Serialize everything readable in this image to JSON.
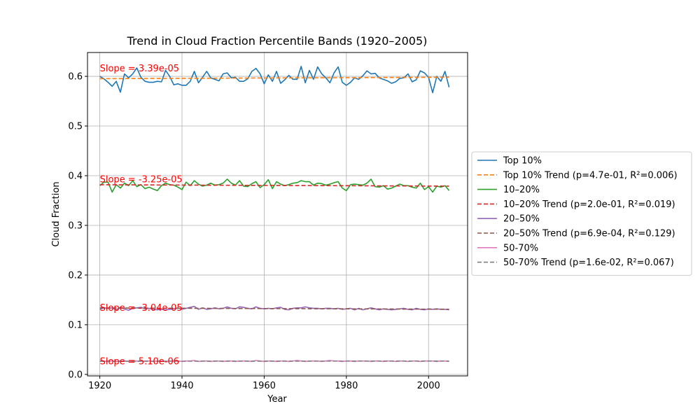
{
  "chart_data": {
    "type": "line",
    "title": "Trend in Cloud Fraction Percentile Bands (1920–2005)",
    "xlabel": "Year",
    "ylabel": "Cloud Fraction",
    "xlim": [
      1917,
      2009.5
    ],
    "ylim": [
      -0.003,
      0.648
    ],
    "x_ticks": [
      1920,
      1940,
      1960,
      1980,
      2000
    ],
    "y_ticks": [
      0.0,
      0.1,
      0.2,
      0.3,
      0.4,
      0.5,
      0.6
    ],
    "y_tick_labels": [
      "0.0",
      "0.1",
      "0.2",
      "0.3",
      "0.4",
      "0.5",
      "0.6"
    ],
    "grid": true,
    "legend_position": "center-right-outside",
    "x_start": 1920,
    "x_end": 2005,
    "series": [
      {
        "name": "Top 10%",
        "color": "#1f77b4",
        "values": [
          0.6,
          0.595,
          0.588,
          0.58,
          0.59,
          0.568,
          0.605,
          0.597,
          0.605,
          0.617,
          0.598,
          0.59,
          0.588,
          0.588,
          0.59,
          0.589,
          0.612,
          0.6,
          0.583,
          0.585,
          0.582,
          0.582,
          0.59,
          0.61,
          0.587,
          0.598,
          0.61,
          0.597,
          0.594,
          0.591,
          0.605,
          0.607,
          0.597,
          0.598,
          0.59,
          0.59,
          0.595,
          0.61,
          0.616,
          0.605,
          0.585,
          0.603,
          0.59,
          0.61,
          0.586,
          0.593,
          0.602,
          0.594,
          0.594,
          0.62,
          0.587,
          0.612,
          0.594,
          0.619,
          0.605,
          0.597,
          0.587,
          0.607,
          0.619,
          0.588,
          0.582,
          0.588,
          0.597,
          0.594,
          0.601,
          0.611,
          0.605,
          0.606,
          0.597,
          0.594,
          0.591,
          0.586,
          0.589,
          0.596,
          0.597,
          0.605,
          0.589,
          0.593,
          0.611,
          0.607,
          0.598,
          0.567,
          0.6,
          0.59,
          0.61,
          0.578
        ]
      },
      {
        "name": "Top 10% Trend (p=4.7e-01, R²=0.006)",
        "color": "#ff7f0e",
        "dashed": true,
        "values": [
          0.5953,
          0.5982
        ]
      },
      {
        "name": "10–20%",
        "color": "#2ca02c",
        "values": [
          0.38,
          0.387,
          0.387,
          0.367,
          0.382,
          0.375,
          0.385,
          0.38,
          0.39,
          0.378,
          0.382,
          0.374,
          0.377,
          0.373,
          0.37,
          0.38,
          0.385,
          0.382,
          0.381,
          0.377,
          0.372,
          0.387,
          0.38,
          0.39,
          0.383,
          0.379,
          0.381,
          0.385,
          0.381,
          0.382,
          0.385,
          0.393,
          0.385,
          0.381,
          0.39,
          0.379,
          0.378,
          0.384,
          0.388,
          0.376,
          0.382,
          0.392,
          0.374,
          0.388,
          0.383,
          0.38,
          0.382,
          0.385,
          0.386,
          0.39,
          0.388,
          0.388,
          0.381,
          0.385,
          0.384,
          0.381,
          0.383,
          0.386,
          0.388,
          0.375,
          0.37,
          0.382,
          0.383,
          0.382,
          0.381,
          0.385,
          0.393,
          0.378,
          0.377,
          0.38,
          0.373,
          0.375,
          0.379,
          0.383,
          0.38,
          0.38,
          0.377,
          0.375,
          0.385,
          0.372,
          0.378,
          0.367,
          0.379,
          0.377,
          0.38,
          0.37
        ]
      },
      {
        "name": "10–20% Trend (p=2.0e-01, R²=0.019)",
        "color": "#d62728",
        "dashed": true,
        "values": [
          0.3818,
          0.379
        ]
      },
      {
        "name": "20–50%",
        "color": "#9467bd",
        "values": [
          0.131,
          0.134,
          0.133,
          0.134,
          0.13,
          0.135,
          0.132,
          0.129,
          0.133,
          0.134,
          0.135,
          0.132,
          0.133,
          0.131,
          0.13,
          0.131,
          0.13,
          0.131,
          0.132,
          0.134,
          0.131,
          0.133,
          0.135,
          0.137,
          0.131,
          0.134,
          0.131,
          0.132,
          0.134,
          0.132,
          0.133,
          0.136,
          0.133,
          0.132,
          0.136,
          0.135,
          0.133,
          0.132,
          0.136,
          0.133,
          0.132,
          0.133,
          0.132,
          0.134,
          0.135,
          0.131,
          0.13,
          0.133,
          0.134,
          0.134,
          0.136,
          0.134,
          0.133,
          0.133,
          0.132,
          0.133,
          0.133,
          0.132,
          0.133,
          0.131,
          0.132,
          0.133,
          0.13,
          0.133,
          0.13,
          0.132,
          0.134,
          0.132,
          0.13,
          0.132,
          0.131,
          0.13,
          0.131,
          0.132,
          0.133,
          0.131,
          0.13,
          0.133,
          0.131,
          0.13,
          0.132,
          0.131,
          0.132,
          0.131,
          0.131,
          0.13
        ]
      },
      {
        "name": "20–50% Trend (p=6.9e-04, R²=0.129)",
        "color": "#8c564b",
        "dashed": true,
        "values": [
          0.1338,
          0.1312
        ]
      },
      {
        "name": "50-70%",
        "color": "#e377c2",
        "values": [
          0.027,
          0.026,
          0.027,
          0.027,
          0.026,
          0.027,
          0.027,
          0.026,
          0.027,
          0.027,
          0.026,
          0.027,
          0.027,
          0.026,
          0.027,
          0.027,
          0.026,
          0.027,
          0.027,
          0.027,
          0.026,
          0.027,
          0.027,
          0.028,
          0.026,
          0.027,
          0.027,
          0.026,
          0.027,
          0.027,
          0.026,
          0.027,
          0.027,
          0.026,
          0.027,
          0.027,
          0.027,
          0.026,
          0.028,
          0.027,
          0.026,
          0.027,
          0.027,
          0.026,
          0.027,
          0.027,
          0.026,
          0.027,
          0.028,
          0.027,
          0.026,
          0.027,
          0.027,
          0.027,
          0.026,
          0.027,
          0.028,
          0.027,
          0.027,
          0.026,
          0.027,
          0.027,
          0.026,
          0.027,
          0.027,
          0.027,
          0.026,
          0.027,
          0.027,
          0.026,
          0.027,
          0.027,
          0.026,
          0.027,
          0.027,
          0.026,
          0.027,
          0.027,
          0.026,
          0.027,
          0.027,
          0.027,
          0.026,
          0.027,
          0.027,
          0.026
        ]
      },
      {
        "name": "50-70% Trend (p=1.6e-02, R²=0.067)",
        "color": "#7f7f7f",
        "dashed": true,
        "values": [
          0.0265,
          0.0269
        ]
      }
    ],
    "annotations": [
      {
        "text": "Slope = 3.39e-05",
        "x": 1920,
        "y": 0.617,
        "color": "#ff0000"
      },
      {
        "text": "Slope = -3.25e-05",
        "x": 1920,
        "y": 0.394,
        "color": "#ff0000"
      },
      {
        "text": "Slope = -3.04e-05",
        "x": 1920,
        "y": 0.135,
        "color": "#ff0000"
      },
      {
        "text": "Slope = 5.10e-06",
        "x": 1920,
        "y": 0.027,
        "color": "#ff0000"
      }
    ]
  }
}
